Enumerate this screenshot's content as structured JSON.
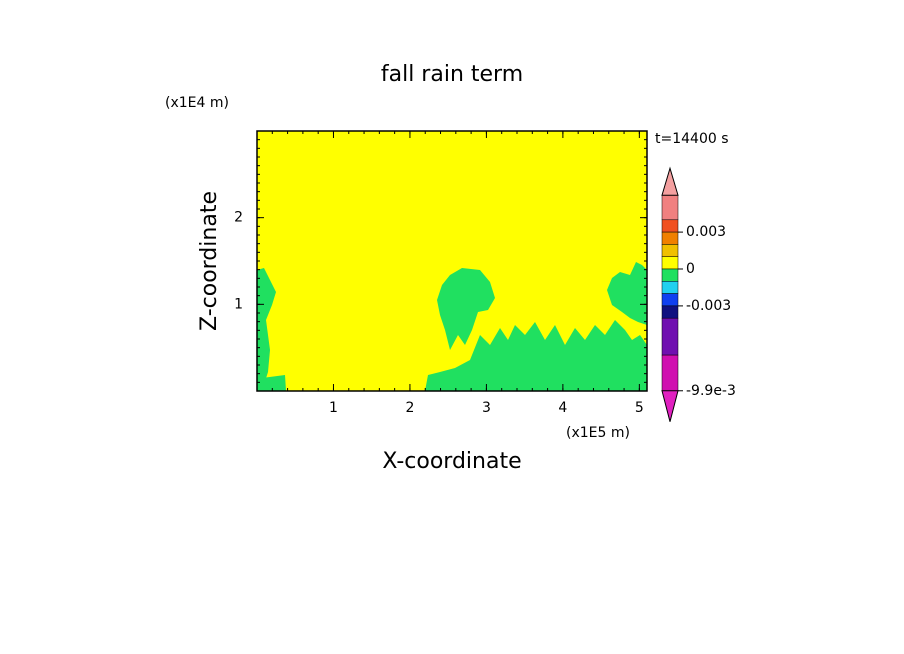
{
  "chart_data": {
    "type": "contour",
    "title": "fall rain term",
    "x_label": "X-coordinate",
    "y_label": "Z-coordinate",
    "x_unit": "(x1E5 m)",
    "y_unit": "(x1E4 m)",
    "time_label": "t=14400 s",
    "xlim": [
      0,
      5.1
    ],
    "ylim": [
      0,
      3
    ],
    "xticks": [
      1,
      2,
      3,
      4,
      5
    ],
    "yticks": [
      1,
      2
    ],
    "background_color": "#ffff00",
    "colorbar": {
      "levels": [
        0.006,
        0.004,
        0.003,
        0.002,
        0.001,
        0,
        -0.001,
        -0.002,
        -0.003,
        -0.004,
        -0.007,
        -0.0099
      ],
      "colors": [
        "#f08080",
        "#f05020",
        "#f08000",
        "#f0c000",
        "#ffff00",
        "#20e060",
        "#20d0f0",
        "#1040f0",
        "#101080",
        "#7010b0",
        "#d010b0"
      ],
      "extend_colors": [
        "#f4a0a0",
        "#e020c0"
      ],
      "ticks": [
        0.003,
        0,
        -0.003,
        {
          "value": -0.0099,
          "label": "-9.9e-3"
        }
      ]
    }
  }
}
